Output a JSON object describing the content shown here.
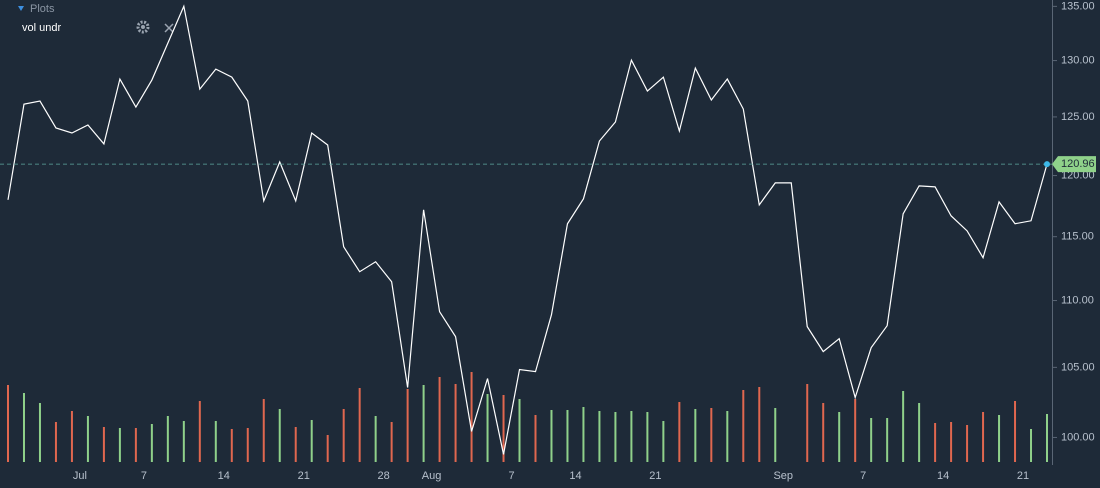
{
  "header": {
    "panel": "Plots",
    "plot_name": "vol undr"
  },
  "chart_data": {
    "type": "line",
    "log_scale": true,
    "categories": [
      null,
      null,
      null,
      null,
      "Jul",
      null,
      null,
      null,
      "7",
      null,
      null,
      null,
      null,
      "14",
      null,
      null,
      null,
      null,
      "21",
      null,
      null,
      null,
      null,
      "28",
      null,
      null,
      "Aug",
      null,
      null,
      null,
      null,
      "7",
      null,
      null,
      null,
      "14",
      null,
      null,
      null,
      null,
      "21",
      null,
      null,
      null,
      null,
      null,
      null,
      null,
      "Sep",
      null,
      null,
      null,
      null,
      "7",
      null,
      null,
      null,
      null,
      "14",
      null,
      null,
      null,
      null,
      "21",
      null,
      null
    ],
    "series": [
      {
        "name": "vol undr",
        "color": "#ffffff",
        "values": [
          117.99,
          126.12,
          126.39,
          124.04,
          123.61,
          124.3,
          122.67,
          128.34,
          125.86,
          128.25,
          131.59,
          135.01,
          127.44,
          129.23,
          128.51,
          126.39,
          117.9,
          121.14,
          117.9,
          123.61,
          122.58,
          114.19,
          112.23,
          113.01,
          111.45,
          103.54,
          117.17,
          109.15,
          107.27,
          100.42,
          104.19,
          98.83,
          104.84,
          104.69,
          108.92,
          116.04,
          118.07,
          122.92,
          124.56,
          130.04,
          127.27,
          128.51,
          123.78,
          129.32,
          126.48,
          128.34,
          125.69,
          117.58,
          119.39,
          119.39,
          108.02,
          106.16,
          107.12,
          102.82,
          106.45,
          108.09,
          116.85,
          119.14,
          119.06,
          116.68,
          115.47,
          113.33,
          117.82,
          116.04,
          116.28,
          120.96
        ]
      }
    ],
    "volume_values": [
      77,
      69,
      59,
      40,
      51,
      46,
      35,
      34,
      34,
      38,
      46,
      41,
      61,
      41,
      33,
      34,
      63,
      53,
      35,
      42,
      27,
      53,
      74,
      46,
      40,
      73,
      77,
      85,
      78,
      90,
      68,
      67,
      63,
      47,
      52,
      52,
      55,
      51,
      50,
      51,
      50,
      41,
      60,
      53,
      54,
      51,
      72,
      75,
      54,
      null,
      78,
      59,
      50,
      63,
      44,
      44,
      71,
      59,
      39,
      40,
      37,
      50,
      47,
      61,
      33,
      48
    ],
    "volume_colors": [
      "#e0674f",
      "#8fd18a",
      "#8fd18a",
      "#e0674f",
      "#e0674f",
      "#8fd18a",
      "#e0674f",
      "#8fd18a",
      "#e0674f",
      "#8fd18a",
      "#8fd18a",
      "#8fd18a",
      "#e0674f",
      "#8fd18a",
      "#e0674f",
      "#e0674f",
      "#e0674f",
      "#8fd18a",
      "#e0674f",
      "#8fd18a",
      "#e0674f",
      "#e0674f",
      "#e0674f",
      "#8fd18a",
      "#e0674f",
      "#e0674f",
      "#8fd18a",
      "#e0674f",
      "#e0674f",
      "#e0674f",
      "#8fd18a",
      "#e0674f",
      "#8fd18a",
      "#e0674f",
      "#8fd18a",
      "#8fd18a",
      "#8fd18a",
      "#8fd18a",
      "#8fd18a",
      "#8fd18a",
      "#8fd18a",
      "#8fd18a",
      "#e0674f",
      "#8fd18a",
      "#e0674f",
      "#8fd18a",
      "#e0674f",
      "#e0674f",
      "#8fd18a",
      "#8fd18a",
      "#e0674f",
      "#e0674f",
      "#8fd18a",
      "#e0674f",
      "#8fd18a",
      "#8fd18a",
      "#8fd18a",
      "#8fd18a",
      "#e0674f",
      "#e0674f",
      "#e0674f",
      "#e0674f",
      "#8fd18a",
      "#e0674f",
      "#8fd18a",
      "#8fd18a"
    ],
    "last_value_color": "#8fd18a",
    "ylim": [
      98.1,
      135.6
    ],
    "yticks": [
      {
        "value": 100,
        "label": "100.00"
      },
      {
        "value": 105,
        "label": "105.00"
      },
      {
        "value": 110,
        "label": "110.00"
      },
      {
        "value": 115,
        "label": "115.00"
      },
      {
        "value": 120,
        "label": "120.00"
      },
      {
        "value": 125,
        "label": "125.00"
      },
      {
        "value": 130,
        "label": "130.00"
      },
      {
        "value": 135,
        "label": "135.00"
      }
    ]
  }
}
